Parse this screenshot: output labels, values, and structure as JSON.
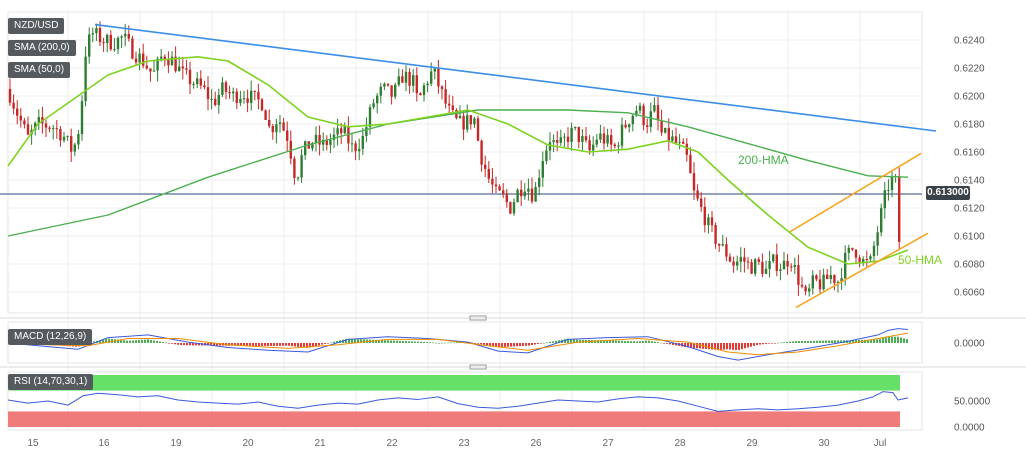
{
  "chart_data": {
    "type": "candlestick",
    "legend": {
      "symbol": "NZD/USD",
      "sma_slow": "SMA (200,0)",
      "sma_fast": "SMA (50,0)"
    },
    "x_tick_labels": [
      "15",
      "16",
      "19",
      "20",
      "21",
      "22",
      "23",
      "26",
      "27",
      "28",
      "29",
      "30",
      "Jul"
    ],
    "ylim": [
      0.6045,
      0.626
    ],
    "y_ticks": [
      "0.6240",
      "0.6220",
      "0.6200",
      "0.6180",
      "0.6160",
      "0.6140",
      "0.6120",
      "0.6100",
      "0.6080",
      "0.6060"
    ],
    "last_price": "0.613000",
    "close_path": [
      [
        0,
        0.6205
      ],
      [
        8,
        0.619
      ],
      [
        14,
        0.618
      ],
      [
        20,
        0.617
      ],
      [
        30,
        0.618
      ],
      [
        45,
        0.6178
      ],
      [
        55,
        0.6172
      ],
      [
        65,
        0.616
      ],
      [
        72,
        0.618
      ],
      [
        78,
        0.6235
      ],
      [
        85,
        0.6245
      ],
      [
        95,
        0.624
      ],
      [
        105,
        0.6238
      ],
      [
        115,
        0.6242
      ],
      [
        125,
        0.6232
      ],
      [
        135,
        0.6225
      ],
      [
        145,
        0.6215
      ],
      [
        155,
        0.623
      ],
      [
        165,
        0.6225
      ],
      [
        175,
        0.6215
      ],
      [
        185,
        0.621
      ],
      [
        195,
        0.6205
      ],
      [
        205,
        0.6195
      ],
      [
        215,
        0.6205
      ],
      [
        225,
        0.62
      ],
      [
        235,
        0.6202
      ],
      [
        245,
        0.6198
      ],
      [
        255,
        0.6195
      ],
      [
        262,
        0.6175
      ],
      [
        270,
        0.6185
      ],
      [
        280,
        0.617
      ],
      [
        288,
        0.614
      ],
      [
        295,
        0.616
      ],
      [
        305,
        0.6168
      ],
      [
        315,
        0.6165
      ],
      [
        325,
        0.617
      ],
      [
        335,
        0.6175
      ],
      [
        345,
        0.6162
      ],
      [
        355,
        0.617
      ],
      [
        365,
        0.6195
      ],
      [
        375,
        0.6205
      ],
      [
        385,
        0.62
      ],
      [
        395,
        0.6215
      ],
      [
        405,
        0.621
      ],
      [
        410,
        0.6195
      ],
      [
        418,
        0.621
      ],
      [
        425,
        0.6218
      ],
      [
        432,
        0.6205
      ],
      [
        440,
        0.619
      ],
      [
        450,
        0.618
      ],
      [
        460,
        0.6182
      ],
      [
        466,
        0.6185
      ],
      [
        472,
        0.616
      ],
      [
        480,
        0.6142
      ],
      [
        488,
        0.613
      ],
      [
        495,
        0.6128
      ],
      [
        502,
        0.612
      ],
      [
        510,
        0.6132
      ],
      [
        518,
        0.6138
      ],
      [
        526,
        0.6128
      ],
      [
        534,
        0.6155
      ],
      [
        542,
        0.617
      ],
      [
        550,
        0.6162
      ],
      [
        558,
        0.617
      ],
      [
        566,
        0.6175
      ],
      [
        574,
        0.6168
      ],
      [
        582,
        0.616
      ],
      [
        590,
        0.6172
      ],
      [
        598,
        0.6168
      ],
      [
        606,
        0.6162
      ],
      [
        614,
        0.6175
      ],
      [
        622,
        0.6185
      ],
      [
        630,
        0.6192
      ],
      [
        638,
        0.618
      ],
      [
        646,
        0.619
      ],
      [
        654,
        0.6172
      ],
      [
        662,
        0.617
      ],
      [
        670,
        0.6165
      ],
      [
        678,
        0.6158
      ],
      [
        686,
        0.613
      ],
      [
        694,
        0.6118
      ],
      [
        702,
        0.6105
      ],
      [
        710,
        0.6095
      ],
      [
        718,
        0.6088
      ],
      [
        726,
        0.608
      ],
      [
        734,
        0.6084
      ],
      [
        742,
        0.6078
      ],
      [
        750,
        0.608
      ],
      [
        758,
        0.6075
      ],
      [
        766,
        0.6082
      ],
      [
        774,
        0.6078
      ],
      [
        782,
        0.6085
      ],
      [
        790,
        0.607
      ],
      [
        798,
        0.6055
      ],
      [
        806,
        0.6068
      ],
      [
        814,
        0.6065
      ],
      [
        822,
        0.6072
      ],
      [
        830,
        0.6068
      ],
      [
        838,
        0.6085
      ],
      [
        846,
        0.6092
      ],
      [
        854,
        0.6082
      ],
      [
        862,
        0.608
      ],
      [
        870,
        0.6105
      ],
      [
        876,
        0.6125
      ],
      [
        882,
        0.614
      ],
      [
        888,
        0.6138
      ],
      [
        891,
        0.6095
      ],
      [
        896,
        0.6132
      ],
      [
        900,
        0.613
      ]
    ],
    "sma200_path": [
      [
        0,
        0.61
      ],
      [
        100,
        0.6115
      ],
      [
        200,
        0.6142
      ],
      [
        300,
        0.6165
      ],
      [
        380,
        0.618
      ],
      [
        470,
        0.619
      ],
      [
        560,
        0.619
      ],
      [
        620,
        0.6188
      ],
      [
        680,
        0.6178
      ],
      [
        740,
        0.6166
      ],
      [
        800,
        0.6154
      ],
      [
        860,
        0.6143
      ],
      [
        900,
        0.6142
      ]
    ],
    "hma50_path": [
      [
        0,
        0.615
      ],
      [
        30,
        0.618
      ],
      [
        70,
        0.62
      ],
      [
        100,
        0.6215
      ],
      [
        140,
        0.6225
      ],
      [
        190,
        0.6228
      ],
      [
        220,
        0.6225
      ],
      [
        260,
        0.6208
      ],
      [
        300,
        0.6185
      ],
      [
        340,
        0.6178
      ],
      [
        380,
        0.618
      ],
      [
        420,
        0.6185
      ],
      [
        460,
        0.619
      ],
      [
        500,
        0.618
      ],
      [
        540,
        0.6165
      ],
      [
        580,
        0.616
      ],
      [
        620,
        0.6162
      ],
      [
        660,
        0.6168
      ],
      [
        690,
        0.616
      ],
      [
        720,
        0.614
      ],
      [
        760,
        0.6115
      ],
      [
        800,
        0.6092
      ],
      [
        840,
        0.608
      ],
      [
        870,
        0.6082
      ],
      [
        900,
        0.609
      ]
    ],
    "trendlines": [
      {
        "role": "resistance",
        "color": "#3b8ee8",
        "from": [
          95,
          0.6251
        ],
        "to": [
          936,
          0.6175
        ]
      },
      {
        "role": "channel-upper",
        "color": "#f5a623",
        "from": [
          790,
          0.6103
        ],
        "to": [
          921,
          0.6159
        ]
      },
      {
        "role": "channel-lower",
        "color": "#f5a623",
        "from": [
          796,
          0.6049
        ],
        "to": [
          928,
          0.6102
        ]
      }
    ],
    "annotations": [
      {
        "text": "200-HMA",
        "color": "#4caf50"
      },
      {
        "text": "50-HMA",
        "color": "#7ed321"
      }
    ],
    "macd": {
      "label": "MACD (12,26,9)",
      "y_tick": "0.0000",
      "line": [
        [
          0,
          0.0
        ],
        [
          40,
          -0.0004
        ],
        [
          70,
          -0.0007
        ],
        [
          100,
          0.0006
        ],
        [
          140,
          0.0009
        ],
        [
          180,
          0.0001
        ],
        [
          220,
          -0.0005
        ],
        [
          260,
          -0.0008
        ],
        [
          300,
          -0.001
        ],
        [
          340,
          0.0004
        ],
        [
          380,
          0.0007
        ],
        [
          420,
          0.0005
        ],
        [
          460,
          0.0001
        ],
        [
          490,
          -0.0009
        ],
        [
          520,
          -0.0011
        ],
        [
          560,
          0.0004
        ],
        [
          600,
          0.0006
        ],
        [
          640,
          0.0007
        ],
        [
          680,
          -0.0004
        ],
        [
          710,
          -0.0015
        ],
        [
          730,
          -0.0019
        ],
        [
          760,
          -0.0013
        ],
        [
          800,
          -0.0006
        ],
        [
          840,
          0.0002
        ],
        [
          870,
          0.0009
        ],
        [
          880,
          0.0014
        ],
        [
          890,
          0.0016
        ],
        [
          900,
          0.0015
        ]
      ],
      "signal": [
        [
          0,
          0.0
        ],
        [
          40,
          -0.0002
        ],
        [
          80,
          -0.0003
        ],
        [
          120,
          0.0005
        ],
        [
          170,
          0.0005
        ],
        [
          220,
          -0.0002
        ],
        [
          280,
          -0.0006
        ],
        [
          330,
          -0.0002
        ],
        [
          380,
          0.0004
        ],
        [
          430,
          0.0004
        ],
        [
          480,
          -0.0003
        ],
        [
          520,
          -0.0008
        ],
        [
          570,
          0.0001
        ],
        [
          630,
          0.0005
        ],
        [
          680,
          0.0001
        ],
        [
          720,
          -0.001
        ],
        [
          750,
          -0.0013
        ],
        [
          790,
          -0.001
        ],
        [
          830,
          -0.0003
        ],
        [
          870,
          0.0005
        ],
        [
          900,
          0.0011
        ]
      ]
    },
    "rsi": {
      "label": "RSI (14,70,30,1)",
      "y_ticks": [
        "50.0000",
        "0.0000"
      ],
      "ylim": [
        0,
        100
      ],
      "bands": {
        "upper": 70,
        "lower": 30
      },
      "line": [
        [
          0,
          52
        ],
        [
          20,
          46
        ],
        [
          40,
          50
        ],
        [
          60,
          42
        ],
        [
          75,
          60
        ],
        [
          90,
          65
        ],
        [
          110,
          62
        ],
        [
          130,
          58
        ],
        [
          150,
          60
        ],
        [
          170,
          52
        ],
        [
          190,
          48
        ],
        [
          210,
          46
        ],
        [
          230,
          44
        ],
        [
          250,
          48
        ],
        [
          270,
          40
        ],
        [
          290,
          36
        ],
        [
          310,
          42
        ],
        [
          330,
          46
        ],
        [
          350,
          44
        ],
        [
          370,
          52
        ],
        [
          390,
          56
        ],
        [
          410,
          53
        ],
        [
          430,
          58
        ],
        [
          450,
          45
        ],
        [
          470,
          38
        ],
        [
          490,
          36
        ],
        [
          510,
          40
        ],
        [
          530,
          46
        ],
        [
          550,
          52
        ],
        [
          570,
          50
        ],
        [
          590,
          48
        ],
        [
          610,
          54
        ],
        [
          630,
          58
        ],
        [
          650,
          56
        ],
        [
          670,
          50
        ],
        [
          690,
          40
        ],
        [
          710,
          30
        ],
        [
          730,
          33
        ],
        [
          750,
          35
        ],
        [
          770,
          33
        ],
        [
          790,
          35
        ],
        [
          810,
          38
        ],
        [
          830,
          42
        ],
        [
          850,
          50
        ],
        [
          865,
          58
        ],
        [
          875,
          68
        ],
        [
          885,
          66
        ],
        [
          890,
          52
        ],
        [
          900,
          56
        ]
      ]
    }
  }
}
